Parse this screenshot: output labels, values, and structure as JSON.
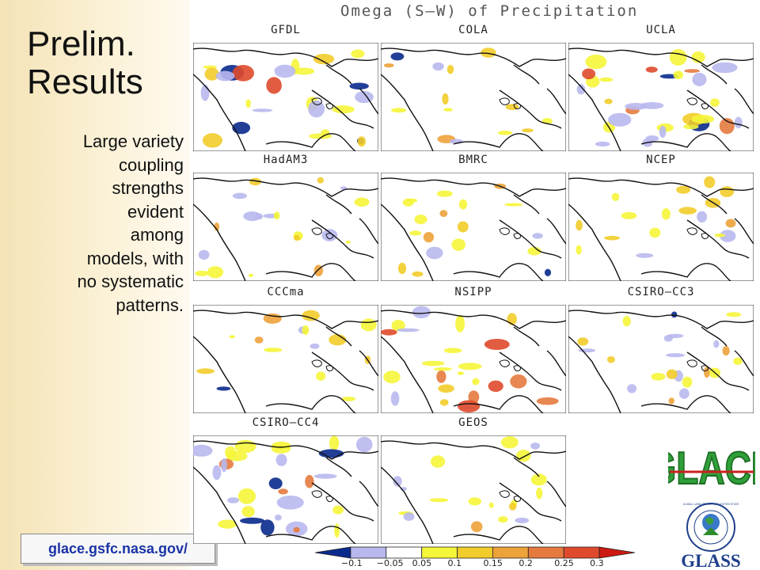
{
  "slide": {
    "title_line1": "Prelim.",
    "title_line2": "Results",
    "body_lines": [
      "Large variety",
      "coupling",
      "strengths",
      "evident",
      "among",
      "models, with",
      "no systematic",
      "patterns."
    ],
    "url": "glace.gsfc.nasa.gov/"
  },
  "figure": {
    "title": "Omega (S—W) of Precipitation",
    "panels": [
      "GFDL",
      "COLA",
      "UCLA",
      "HadAM3",
      "BMRC",
      "NCEP",
      "CCCma",
      "NSIPP",
      "CSIRO—CC3",
      "CSIRO—CC4",
      "GEOS"
    ],
    "colorbar": {
      "ticks": [
        "−0.1",
        "−0.05",
        "0.05",
        "0.1",
        "0.15",
        "0.2",
        "0.25",
        "0.3"
      ],
      "colors": [
        "#0a2a8c",
        "#b8b8ee",
        "#ffffff",
        "#f5f53a",
        "#f2cc2a",
        "#eda23a",
        "#e47a3e",
        "#df4a2c",
        "#cc1a12"
      ]
    }
  },
  "logos": {
    "glace": "GLACE",
    "glass": "GLASS",
    "glass_ring_text": "GLOBAL LAND ATMOSPHERE SYSTEM STUDY"
  }
}
